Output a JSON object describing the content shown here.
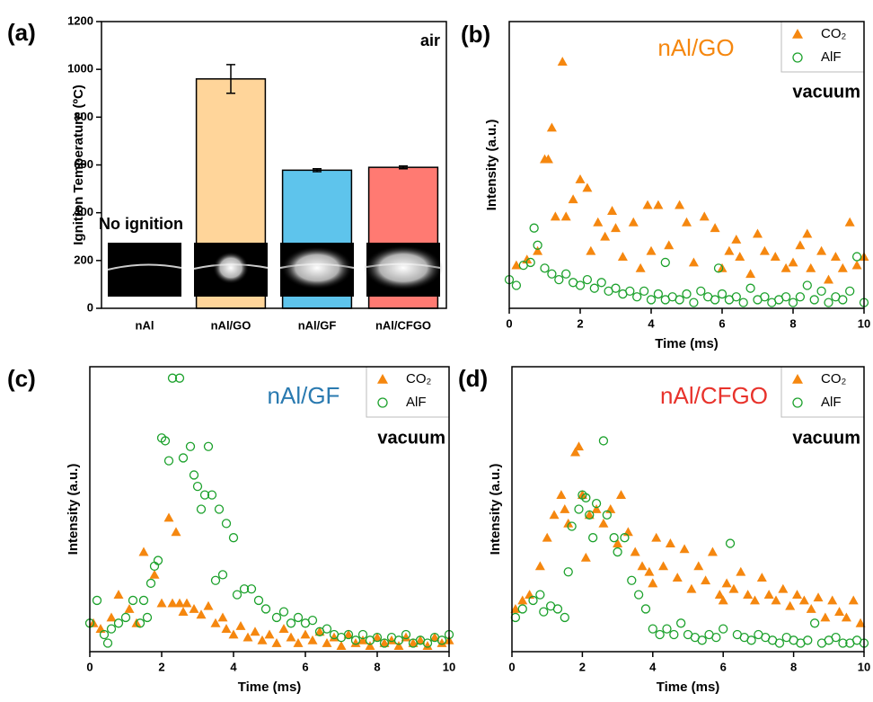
{
  "chart_data": [
    {
      "type": "bar",
      "panel_label": "(a)",
      "ylabel": "Ignition Temperature (ºC)",
      "categories": [
        "nAl",
        "nAl/GO",
        "nAl/GF",
        "nAl/CFGO"
      ],
      "values": [
        null,
        960,
        578,
        590
      ],
      "errors": [
        null,
        60,
        6,
        6
      ],
      "colors": [
        "#ffd59a",
        "#ffd59a",
        "#5ec4ec",
        "#ff7a72"
      ],
      "ylim": [
        0,
        1200
      ],
      "yticks": [
        0,
        200,
        400,
        600,
        800,
        1000,
        1200
      ],
      "annotations": [
        {
          "text": "air",
          "color": "#000000"
        },
        {
          "text": "No ignition",
          "color": "#000000"
        }
      ]
    },
    {
      "type": "scatter",
      "panel_label": "(b)",
      "xlabel": "Time (ms)",
      "ylabel": "Intensity (a.u.)",
      "xlim": [
        0,
        10
      ],
      "xticks": [
        0,
        2,
        4,
        6,
        8,
        10
      ],
      "ylim": [
        0,
        100
      ],
      "annotations": [
        {
          "text": "nAl/GO",
          "color": "#f5870f"
        },
        {
          "text": "vacuum",
          "color": "#000000"
        }
      ],
      "series": [
        {
          "name": "CO₂",
          "color": "#f5870f",
          "marker": "triangle",
          "x": [
            1.5,
            1.2,
            1.0,
            1.1,
            2.0,
            2.2,
            1.8,
            2.5,
            1.6,
            3.0,
            3.5,
            3.9,
            4.2,
            4.8,
            5.0,
            4.5,
            5.5,
            5.8,
            6.2,
            6.5,
            7.0,
            7.2,
            7.5,
            8.0,
            8.5,
            8.8,
            9.2,
            9.6,
            10,
            0.2,
            0.5,
            0.8,
            1.3,
            2.7,
            3.2,
            3.7,
            4.0,
            5.2,
            6.0,
            6.8,
            7.8,
            8.2,
            9.0,
            9.4,
            2.3,
            2.9,
            6.4,
            8.4,
            9.8
          ],
          "values": [
            86,
            63,
            52,
            52,
            45,
            42,
            38,
            30,
            32,
            28,
            30,
            36,
            36,
            36,
            30,
            22,
            32,
            28,
            20,
            18,
            26,
            20,
            18,
            16,
            14,
            20,
            18,
            30,
            18,
            15,
            17,
            20,
            32,
            25,
            18,
            14,
            20,
            16,
            14,
            12,
            14,
            22,
            10,
            14,
            20,
            34,
            24,
            26,
            15
          ]
        },
        {
          "name": "AlF",
          "color": "#1ca12c",
          "marker": "circle",
          "x": [
            0,
            0.2,
            0.4,
            0.6,
            0.7,
            0.8,
            1.0,
            1.2,
            1.4,
            1.6,
            1.8,
            2.0,
            2.2,
            2.4,
            2.6,
            2.8,
            3.0,
            3.2,
            3.4,
            3.6,
            3.8,
            4.0,
            4.2,
            4.4,
            4.6,
            4.8,
            5.0,
            5.2,
            5.4,
            5.6,
            5.8,
            6.0,
            6.2,
            6.4,
            6.6,
            6.8,
            7.0,
            7.2,
            7.4,
            7.6,
            7.8,
            8.0,
            8.2,
            8.4,
            8.6,
            8.8,
            9.0,
            9.2,
            9.4,
            9.6,
            9.8,
            10,
            4.4,
            5.9
          ],
          "values": [
            10,
            8,
            15,
            16,
            28,
            22,
            14,
            12,
            10,
            12,
            9,
            8,
            10,
            7,
            9,
            6,
            7,
            5,
            6,
            4,
            6,
            3,
            5,
            3,
            4,
            3,
            5,
            2,
            6,
            4,
            3,
            5,
            3,
            4,
            2,
            7,
            3,
            4,
            2,
            3,
            4,
            2,
            4,
            8,
            3,
            6,
            2,
            4,
            3,
            6,
            18,
            2,
            16,
            14
          ]
        }
      ]
    },
    {
      "type": "scatter",
      "panel_label": "(c)",
      "xlabel": "Time (ms)",
      "ylabel": "Intensity (a.u.)",
      "xlim": [
        0,
        10
      ],
      "xticks": [
        0,
        2,
        4,
        6,
        8,
        10
      ],
      "ylim": [
        0,
        100
      ],
      "annotations": [
        {
          "text": "nAl/GF",
          "color": "#2a7ab0"
        },
        {
          "text": "vacuum",
          "color": "#000000"
        }
      ],
      "series": [
        {
          "name": "CO₂",
          "color": "#f5870f",
          "marker": "triangle",
          "x": [
            0.1,
            0.3,
            0.6,
            0.8,
            1.1,
            1.5,
            1.8,
            2.0,
            2.2,
            2.4,
            2.3,
            2.5,
            2.7,
            2.9,
            3.1,
            3.3,
            3.5,
            3.8,
            4.0,
            4.2,
            4.4,
            4.6,
            4.8,
            5.0,
            5.2,
            5.4,
            5.6,
            5.8,
            6.0,
            6.2,
            6.4,
            6.6,
            6.8,
            7.0,
            7.2,
            7.4,
            7.6,
            7.8,
            8.0,
            8.2,
            8.4,
            8.6,
            8.8,
            9.0,
            9.2,
            9.4,
            9.6,
            9.8,
            10,
            1.3,
            2.6,
            3.7
          ],
          "values": [
            10,
            8,
            12,
            20,
            15,
            35,
            27,
            17,
            47,
            42,
            17,
            17,
            17,
            15,
            13,
            16,
            10,
            8,
            6,
            9,
            5,
            7,
            4,
            6,
            3,
            8,
            5,
            3,
            6,
            4,
            7,
            3,
            5,
            2,
            6,
            3,
            4,
            2,
            5,
            3,
            4,
            2,
            5,
            3,
            4,
            2,
            5,
            3,
            4,
            10,
            14,
            12
          ]
        },
        {
          "name": "AlF",
          "color": "#1ca12c",
          "marker": "circle",
          "x": [
            2.3,
            2.5,
            2.0,
            2.1,
            2.2,
            2.6,
            2.8,
            2.9,
            3.0,
            3.2,
            3.3,
            3.4,
            3.1,
            3.6,
            3.8,
            4.0,
            3.7,
            3.5,
            1.8,
            1.9,
            1.7,
            1.5,
            1.2,
            1.0,
            0.8,
            0.6,
            0.4,
            0.2,
            0,
            0.5,
            1.4,
            1.6,
            4.1,
            4.3,
            4.5,
            4.7,
            4.9,
            5.2,
            5.4,
            5.6,
            5.8,
            6.0,
            6.2,
            6.4,
            6.6,
            6.8,
            7.0,
            7.2,
            7.4,
            7.6,
            7.8,
            8.0,
            8.2,
            8.4,
            8.6,
            8.8,
            9.0,
            9.2,
            9.4,
            9.6,
            9.8,
            10
          ],
          "values": [
            96,
            96,
            75,
            74,
            67,
            68,
            72,
            62,
            58,
            55,
            72,
            55,
            50,
            50,
            45,
            40,
            27,
            25,
            30,
            32,
            24,
            18,
            18,
            12,
            10,
            8,
            6,
            18,
            10,
            3,
            10,
            12,
            20,
            22,
            22,
            18,
            15,
            12,
            14,
            10,
            12,
            10,
            11,
            7,
            8,
            6,
            5,
            6,
            4,
            6,
            4,
            5,
            3,
            5,
            4,
            6,
            3,
            4,
            3,
            5,
            4,
            6
          ]
        }
      ]
    },
    {
      "type": "scatter",
      "panel_label": "(d)",
      "xlabel": "Time (ms)",
      "ylabel": "Intensity (a.u.)",
      "xlim": [
        0,
        10
      ],
      "xticks": [
        0,
        2,
        4,
        6,
        8,
        10
      ],
      "ylim": [
        0,
        100
      ],
      "annotations": [
        {
          "text": "nAl/CFGO",
          "color": "#e8322b"
        },
        {
          "text": "vacuum",
          "color": "#000000"
        }
      ],
      "series": [
        {
          "name": "CO₂",
          "color": "#f5870f",
          "marker": "triangle",
          "x": [
            0.1,
            0.3,
            0.5,
            0.8,
            1.0,
            1.2,
            1.4,
            1.5,
            1.6,
            1.8,
            1.9,
            2.0,
            2.2,
            2.4,
            2.6,
            2.8,
            3.1,
            3.3,
            3.5,
            3.7,
            3.9,
            4.1,
            4.3,
            4.5,
            4.7,
            4.9,
            5.1,
            5.3,
            5.5,
            5.7,
            5.9,
            6.1,
            6.3,
            6.5,
            6.7,
            6.9,
            7.1,
            7.3,
            7.5,
            7.7,
            7.9,
            8.1,
            8.3,
            8.5,
            8.7,
            8.9,
            9.1,
            9.3,
            9.5,
            9.7,
            9.9,
            2.1,
            3.0,
            4.0,
            6.0
          ],
          "values": [
            15,
            18,
            20,
            30,
            40,
            48,
            55,
            50,
            45,
            70,
            72,
            55,
            48,
            50,
            45,
            50,
            55,
            42,
            35,
            30,
            28,
            40,
            30,
            38,
            26,
            36,
            22,
            30,
            25,
            35,
            20,
            24,
            22,
            28,
            20,
            18,
            26,
            20,
            18,
            22,
            16,
            20,
            18,
            15,
            19,
            12,
            18,
            14,
            12,
            18,
            10,
            33,
            38,
            24,
            18
          ]
        },
        {
          "name": "AlF",
          "color": "#1ca12c",
          "marker": "circle",
          "x": [
            0.1,
            0.3,
            0.6,
            0.8,
            0.9,
            1.1,
            1.3,
            1.5,
            1.7,
            1.9,
            2.0,
            2.1,
            2.2,
            2.4,
            2.6,
            2.7,
            2.9,
            3.0,
            3.2,
            3.4,
            3.6,
            3.8,
            4.0,
            4.2,
            4.4,
            4.6,
            4.8,
            5.0,
            5.2,
            5.4,
            5.6,
            5.8,
            6.0,
            6.2,
            6.4,
            6.6,
            6.8,
            7.0,
            7.2,
            7.4,
            7.6,
            7.8,
            8.0,
            8.2,
            8.4,
            8.6,
            8.8,
            9.0,
            9.2,
            9.4,
            9.6,
            9.8,
            10,
            2.3,
            1.6
          ],
          "values": [
            12,
            15,
            18,
            20,
            14,
            16,
            15,
            12,
            44,
            50,
            55,
            54,
            48,
            52,
            74,
            48,
            40,
            35,
            40,
            25,
            20,
            15,
            8,
            6,
            8,
            6,
            10,
            6,
            5,
            4,
            6,
            5,
            8,
            38,
            6,
            5,
            4,
            6,
            5,
            4,
            3,
            5,
            4,
            3,
            4,
            10,
            3,
            4,
            5,
            3,
            3,
            4,
            3,
            40,
            28
          ]
        }
      ]
    }
  ]
}
